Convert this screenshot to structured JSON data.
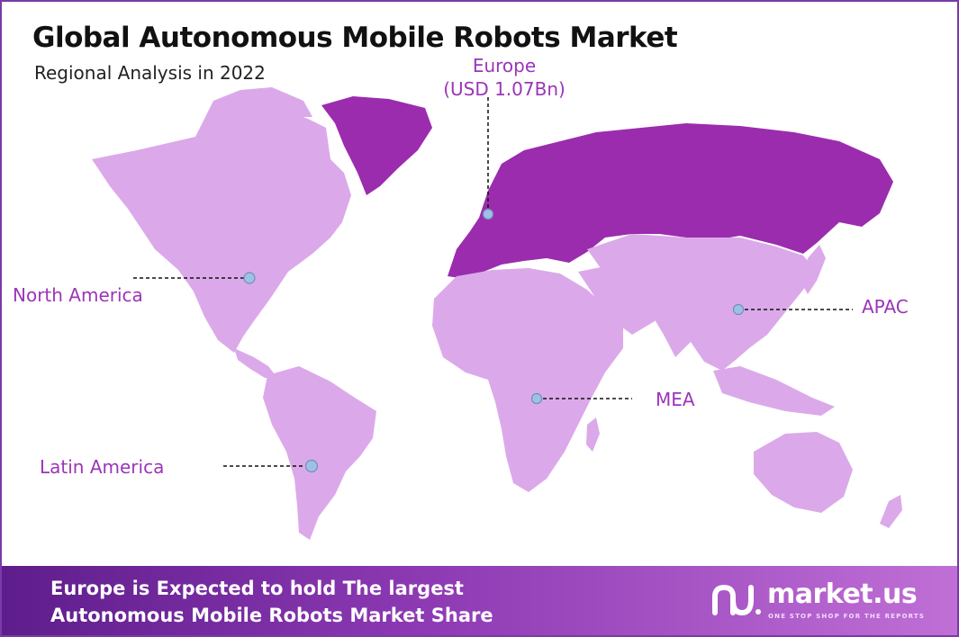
{
  "header": {
    "title": "Global Autonomous Mobile Robots Market",
    "subtitle": "Regional Analysis in 2022"
  },
  "regions": [
    {
      "id": "north-america",
      "label": "North America"
    },
    {
      "id": "latin-america",
      "label": "Latin America"
    },
    {
      "id": "europe",
      "label": "Europe",
      "value": "(USD 1.07Bn)"
    },
    {
      "id": "mea",
      "label": "MEA"
    },
    {
      "id": "apac",
      "label": "APAC"
    }
  ],
  "footer": {
    "line1": "Europe is Expected to hold The largest",
    "line2": "Autonomous Mobile Robots Market Share"
  },
  "brand": {
    "name": "market.us",
    "tagline": "ONE STOP SHOP FOR THE REPORTS"
  },
  "colors": {
    "highlight_region": "#9b2cae",
    "other_regions": "#dba9ea",
    "label_text": "#9b35b8",
    "marker": "#9fc0e6",
    "footer_start": "#5e1d8c",
    "footer_end": "#c06fd6"
  }
}
